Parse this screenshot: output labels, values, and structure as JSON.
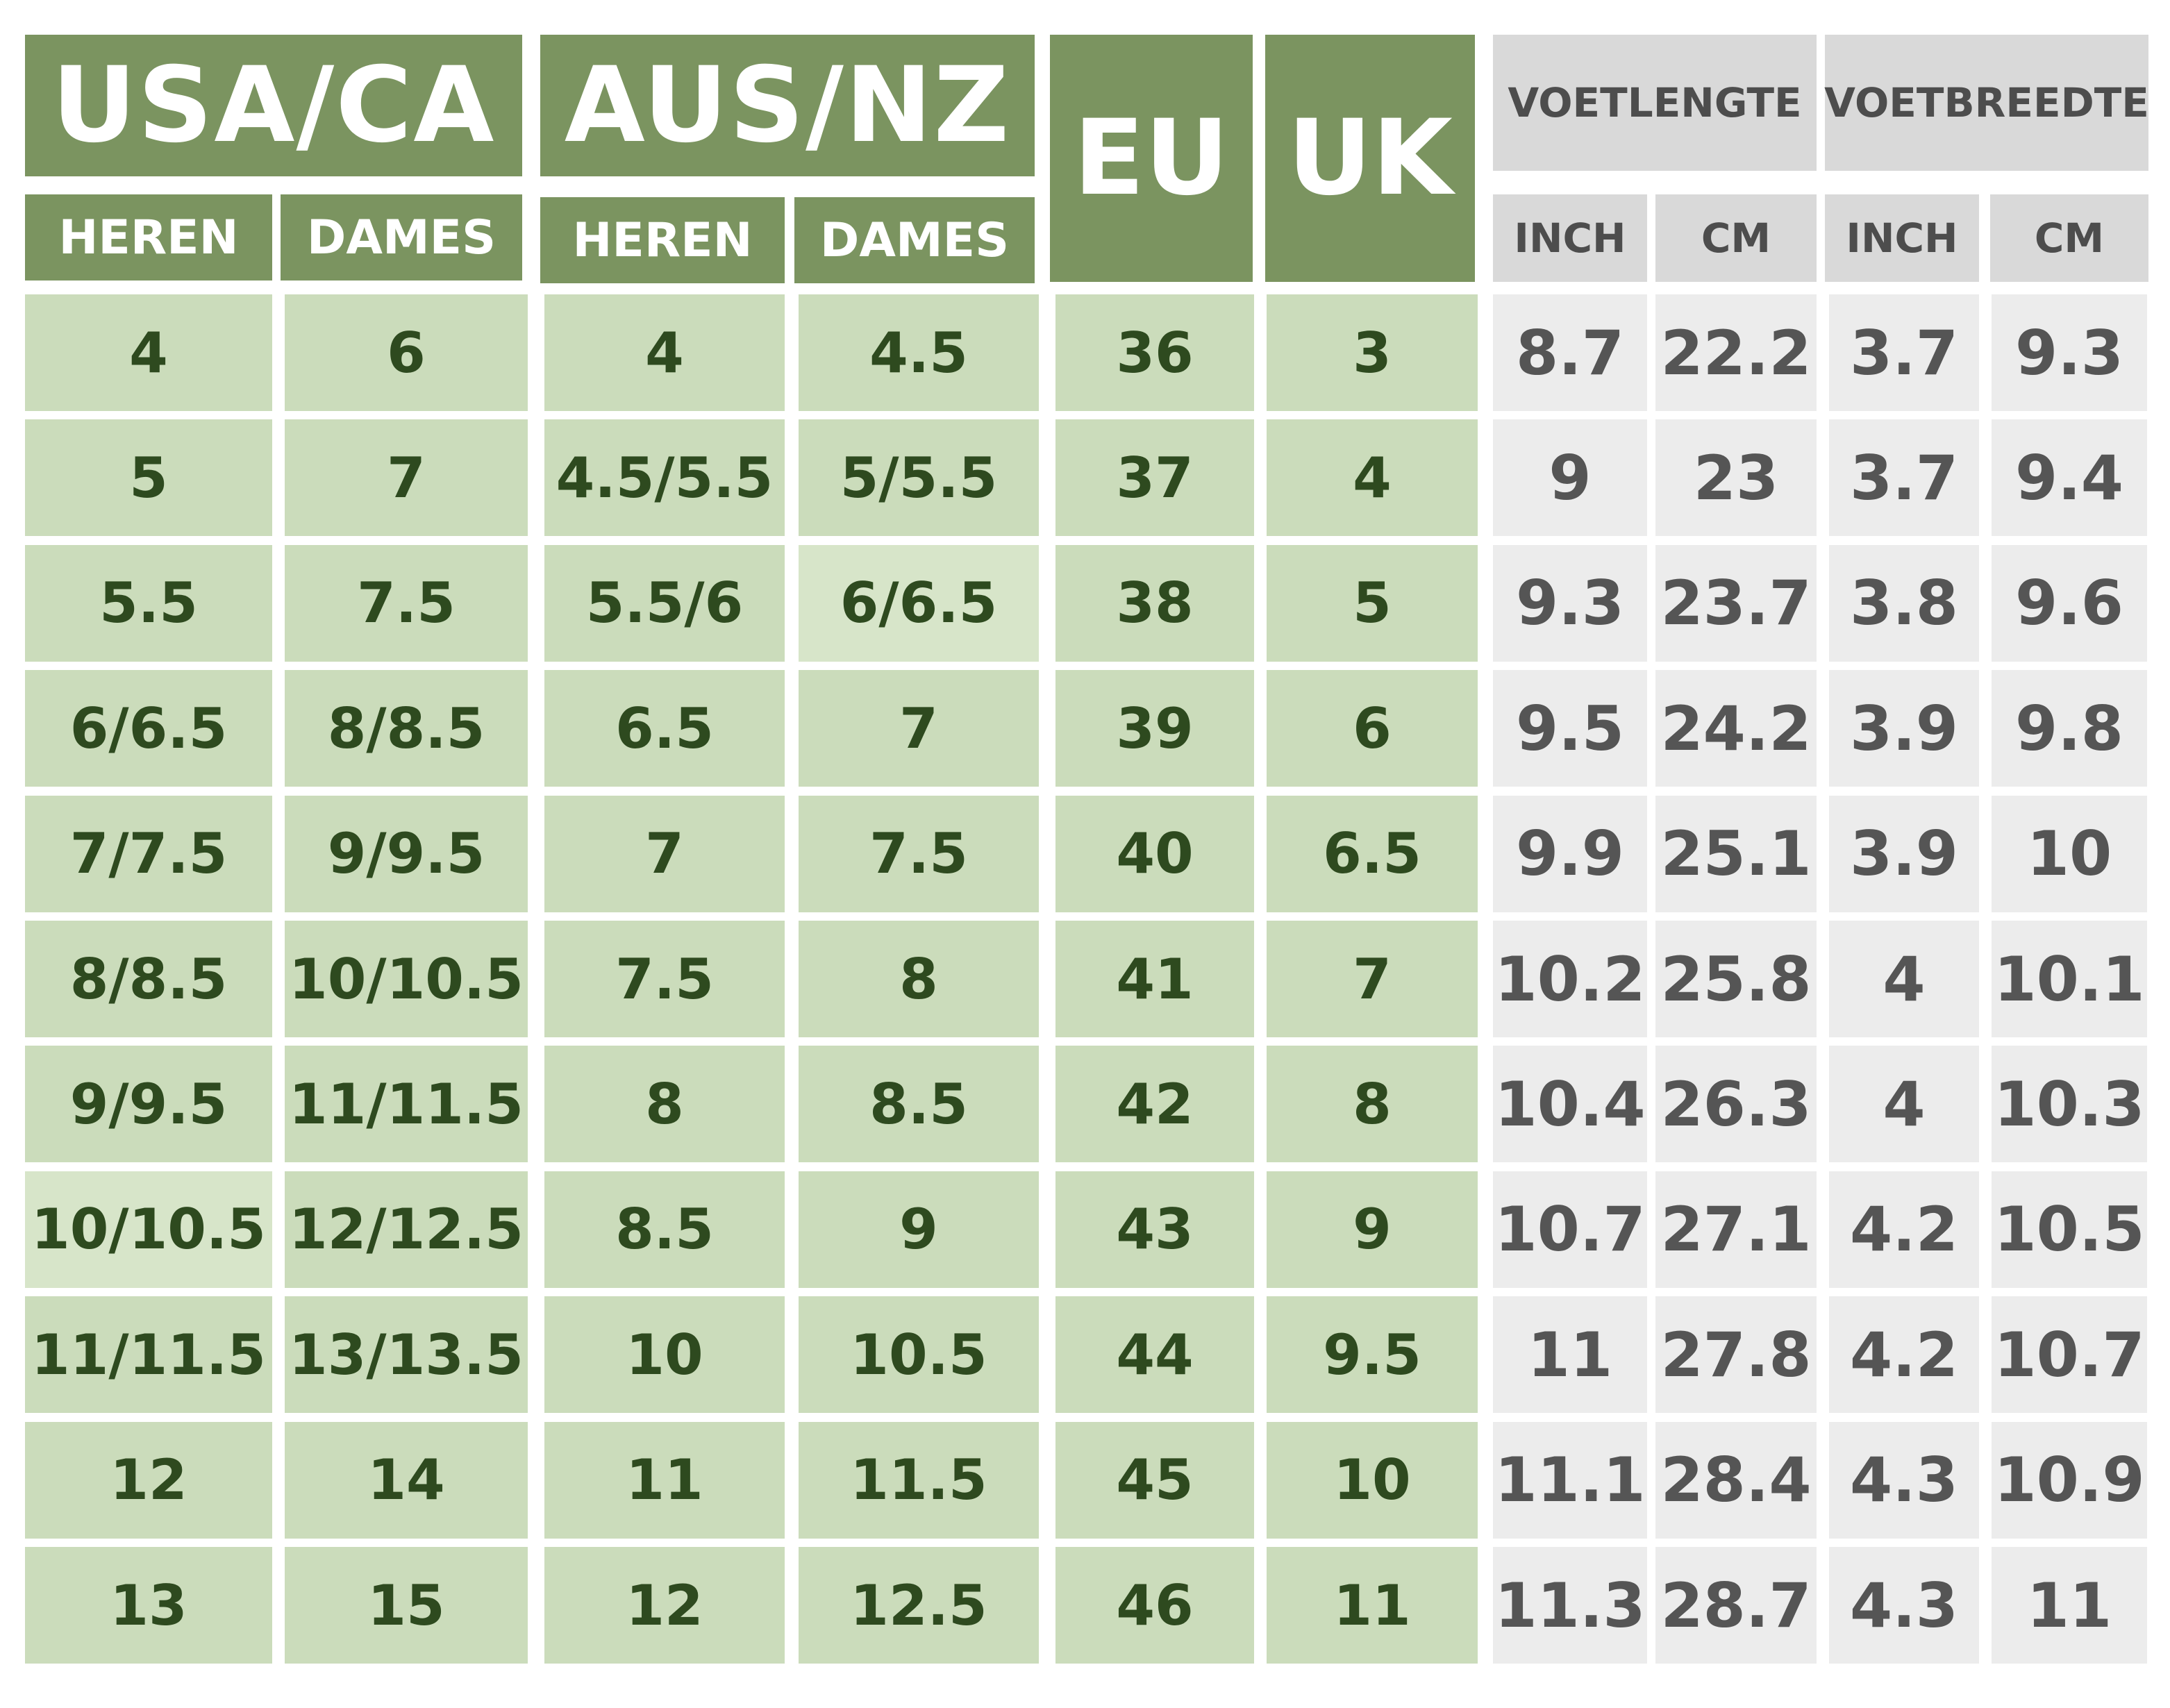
{
  "headers": {
    "usa_ca": "USA/CA",
    "aus_nz": "AUS/NZ",
    "eu": "EU",
    "uk": "UK",
    "voetlengte": "VOETLENGTE",
    "voetbreedte": "VOETBREEDTE",
    "heren": "HEREN",
    "dames": "DAMES",
    "inch": "INCH",
    "cm": "CM"
  },
  "rows": [
    [
      "4",
      "6",
      "4",
      "4.5",
      "36",
      "3",
      "8.7",
      "22.2",
      "3.7",
      "9.3"
    ],
    [
      "5",
      "7",
      "4.5/5.5",
      "5/5.5",
      "37",
      "4",
      "9",
      "23",
      "3.7",
      "9.4"
    ],
    [
      "5.5",
      "7.5",
      "5.5/6",
      "6/6.5",
      "38",
      "5",
      "9.3",
      "23.7",
      "3.8",
      "9.6"
    ],
    [
      "6/6.5",
      "8/8.5",
      "6.5",
      "7",
      "39",
      "6",
      "9.5",
      "24.2",
      "3.9",
      "9.8"
    ],
    [
      "7/7.5",
      "9/9.5",
      "7",
      "7.5",
      "40",
      "6.5",
      "9.9",
      "25.1",
      "3.9",
      "10"
    ],
    [
      "8/8.5",
      "10/10.5",
      "7.5",
      "8",
      "41",
      "7",
      "10.2",
      "25.8",
      "4",
      "10.1"
    ],
    [
      "9/9.5",
      "11/11.5",
      "8",
      "8.5",
      "42",
      "8",
      "10.4",
      "26.3",
      "4",
      "10.3"
    ],
    [
      "10/10.5",
      "12/12.5",
      "8.5",
      "9",
      "43",
      "9",
      "10.7",
      "27.1",
      "4.2",
      "10.5"
    ],
    [
      "11/11.5",
      "13/13.5",
      "10",
      "10.5",
      "44",
      "9.5",
      "11",
      "27.8",
      "4.2",
      "10.7"
    ],
    [
      "12",
      "14",
      "11",
      "11.5",
      "45",
      "10",
      "11.1",
      "28.4",
      "4.3",
      "10.9"
    ],
    [
      "13",
      "15",
      "12",
      "12.5",
      "46",
      "11",
      "11.3",
      "28.7",
      "4.3",
      "11"
    ]
  ],
  "colors": {
    "header_green": "#7b9460",
    "cell_green": "#cbdcbb",
    "cell_green_light": "#d7e5c9",
    "text_green": "#2e4a1f",
    "header_grey": "#d9d9d9",
    "cell_grey": "#ececec",
    "text_grey": "#555555"
  }
}
